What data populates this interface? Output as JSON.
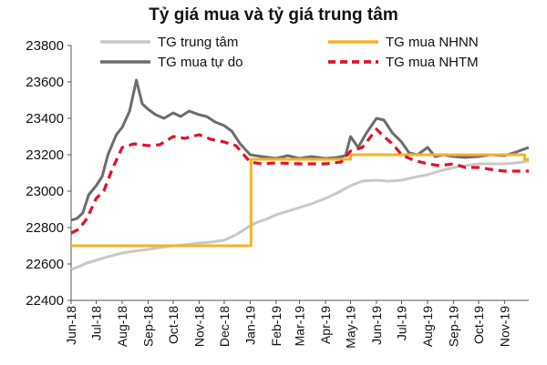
{
  "chart_data": {
    "type": "line",
    "title": "Tỷ giá mua và tỷ giá trung tâm",
    "xlabel": "",
    "ylabel": "",
    "ylim": [
      22400,
      23800
    ],
    "yticks": [
      22400,
      22600,
      22800,
      23000,
      23200,
      23400,
      23600,
      23800
    ],
    "x_range": [
      "2018-06-01",
      "2019-11-30"
    ],
    "x_ticks": [
      "Jun-18",
      "Jul-18",
      "Aug-18",
      "Sep-18",
      "Oct-18",
      "Nov-18",
      "Dec-18",
      "Jan-19",
      "Feb-19",
      "Mar-19",
      "Apr-19",
      "May-19",
      "Jun-19",
      "Jul-19",
      "Aug-19",
      "Sep-19",
      "Oct-19",
      "Nov-19"
    ],
    "legend_position": "top",
    "grid": false,
    "series": [
      {
        "name": "TG trung tâm",
        "color": "#c8c8c8",
        "style": "solid",
        "points": [
          [
            "2018-06-01",
            22570
          ],
          [
            "2018-06-10",
            22585
          ],
          [
            "2018-06-20",
            22605
          ],
          [
            "2018-07-01",
            22620
          ],
          [
            "2018-07-15",
            22640
          ],
          [
            "2018-08-01",
            22660
          ],
          [
            "2018-08-15",
            22670
          ],
          [
            "2018-09-01",
            22680
          ],
          [
            "2018-09-15",
            22690
          ],
          [
            "2018-10-01",
            22700
          ],
          [
            "2018-10-15",
            22705
          ],
          [
            "2018-11-01",
            22715
          ],
          [
            "2018-11-15",
            22720
          ],
          [
            "2018-12-01",
            22730
          ],
          [
            "2018-12-15",
            22760
          ],
          [
            "2019-01-01",
            22810
          ],
          [
            "2019-01-10",
            22830
          ],
          [
            "2019-01-20",
            22845
          ],
          [
            "2019-02-01",
            22870
          ],
          [
            "2019-02-15",
            22890
          ],
          [
            "2019-03-01",
            22910
          ],
          [
            "2019-03-15",
            22930
          ],
          [
            "2019-04-01",
            22960
          ],
          [
            "2019-04-15",
            22990
          ],
          [
            "2019-05-01",
            23030
          ],
          [
            "2019-05-15",
            23055
          ],
          [
            "2019-06-01",
            23060
          ],
          [
            "2019-06-15",
            23055
          ],
          [
            "2019-07-01",
            23060
          ],
          [
            "2019-07-15",
            23075
          ],
          [
            "2019-08-01",
            23090
          ],
          [
            "2019-08-15",
            23110
          ],
          [
            "2019-09-01",
            23130
          ],
          [
            "2019-09-15",
            23140
          ],
          [
            "2019-10-01",
            23150
          ],
          [
            "2019-10-15",
            23150
          ],
          [
            "2019-11-01",
            23150
          ],
          [
            "2019-11-15",
            23155
          ],
          [
            "2019-11-30",
            23165
          ]
        ]
      },
      {
        "name": "TG mua tự do",
        "color": "#6d6d6d",
        "style": "solid",
        "points": [
          [
            "2018-06-01",
            22840
          ],
          [
            "2018-06-08",
            22850
          ],
          [
            "2018-06-15",
            22880
          ],
          [
            "2018-06-22",
            22980
          ],
          [
            "2018-07-01",
            23030
          ],
          [
            "2018-07-08",
            23080
          ],
          [
            "2018-07-15",
            23200
          ],
          [
            "2018-07-25",
            23310
          ],
          [
            "2018-08-01",
            23350
          ],
          [
            "2018-08-10",
            23440
          ],
          [
            "2018-08-18",
            23610
          ],
          [
            "2018-08-25",
            23480
          ],
          [
            "2018-09-01",
            23450
          ],
          [
            "2018-09-10",
            23420
          ],
          [
            "2018-09-20",
            23400
          ],
          [
            "2018-10-01",
            23430
          ],
          [
            "2018-10-10",
            23410
          ],
          [
            "2018-10-20",
            23440
          ],
          [
            "2018-11-01",
            23420
          ],
          [
            "2018-11-10",
            23410
          ],
          [
            "2018-11-20",
            23380
          ],
          [
            "2018-12-01",
            23360
          ],
          [
            "2018-12-10",
            23330
          ],
          [
            "2018-12-20",
            23260
          ],
          [
            "2019-01-01",
            23200
          ],
          [
            "2019-01-15",
            23190
          ],
          [
            "2019-02-01",
            23180
          ],
          [
            "2019-02-15",
            23195
          ],
          [
            "2019-03-01",
            23180
          ],
          [
            "2019-03-15",
            23190
          ],
          [
            "2019-04-01",
            23180
          ],
          [
            "2019-04-15",
            23185
          ],
          [
            "2019-04-25",
            23195
          ],
          [
            "2019-05-01",
            23300
          ],
          [
            "2019-05-10",
            23240
          ],
          [
            "2019-05-20",
            23320
          ],
          [
            "2019-06-01",
            23400
          ],
          [
            "2019-06-10",
            23390
          ],
          [
            "2019-06-20",
            23320
          ],
          [
            "2019-07-01",
            23270
          ],
          [
            "2019-07-10",
            23210
          ],
          [
            "2019-07-20",
            23200
          ],
          [
            "2019-08-01",
            23240
          ],
          [
            "2019-08-10",
            23190
          ],
          [
            "2019-08-20",
            23200
          ],
          [
            "2019-09-01",
            23190
          ],
          [
            "2019-09-15",
            23185
          ],
          [
            "2019-10-01",
            23190
          ],
          [
            "2019-10-15",
            23200
          ],
          [
            "2019-11-01",
            23195
          ],
          [
            "2019-11-15",
            23215
          ],
          [
            "2019-11-30",
            23240
          ]
        ]
      },
      {
        "name": "TG mua NHNN",
        "color": "#f5b324",
        "style": "step",
        "points": [
          [
            "2018-06-01",
            22700
          ],
          [
            "2019-01-02",
            22700
          ],
          [
            "2019-01-02",
            23175
          ],
          [
            "2019-05-01",
            23175
          ],
          [
            "2019-05-01",
            23200
          ],
          [
            "2019-11-25",
            23200
          ],
          [
            "2019-11-25",
            23175
          ],
          [
            "2019-11-30",
            23175
          ]
        ]
      },
      {
        "name": "TG mua NHTM",
        "color": "#e1122a",
        "style": "dashed",
        "points": [
          [
            "2018-06-01",
            22770
          ],
          [
            "2018-06-10",
            22790
          ],
          [
            "2018-06-20",
            22850
          ],
          [
            "2018-07-01",
            22960
          ],
          [
            "2018-07-10",
            23000
          ],
          [
            "2018-07-20",
            23120
          ],
          [
            "2018-08-01",
            23240
          ],
          [
            "2018-08-15",
            23260
          ],
          [
            "2018-09-01",
            23250
          ],
          [
            "2018-09-15",
            23255
          ],
          [
            "2018-10-01",
            23300
          ],
          [
            "2018-10-15",
            23290
          ],
          [
            "2018-11-01",
            23310
          ],
          [
            "2018-11-15",
            23285
          ],
          [
            "2018-12-01",
            23270
          ],
          [
            "2018-12-15",
            23250
          ],
          [
            "2019-01-01",
            23160
          ],
          [
            "2019-01-15",
            23150
          ],
          [
            "2019-02-01",
            23155
          ],
          [
            "2019-03-01",
            23150
          ],
          [
            "2019-04-01",
            23150
          ],
          [
            "2019-04-20",
            23160
          ],
          [
            "2019-05-01",
            23220
          ],
          [
            "2019-05-15",
            23240
          ],
          [
            "2019-06-01",
            23340
          ],
          [
            "2019-06-10",
            23300
          ],
          [
            "2019-06-20",
            23260
          ],
          [
            "2019-07-01",
            23200
          ],
          [
            "2019-07-15",
            23170
          ],
          [
            "2019-08-01",
            23150
          ],
          [
            "2019-08-15",
            23140
          ],
          [
            "2019-09-01",
            23150
          ],
          [
            "2019-09-15",
            23130
          ],
          [
            "2019-10-01",
            23130
          ],
          [
            "2019-10-15",
            23120
          ],
          [
            "2019-11-01",
            23110
          ],
          [
            "2019-11-15",
            23110
          ],
          [
            "2019-11-30",
            23110
          ]
        ]
      }
    ]
  }
}
